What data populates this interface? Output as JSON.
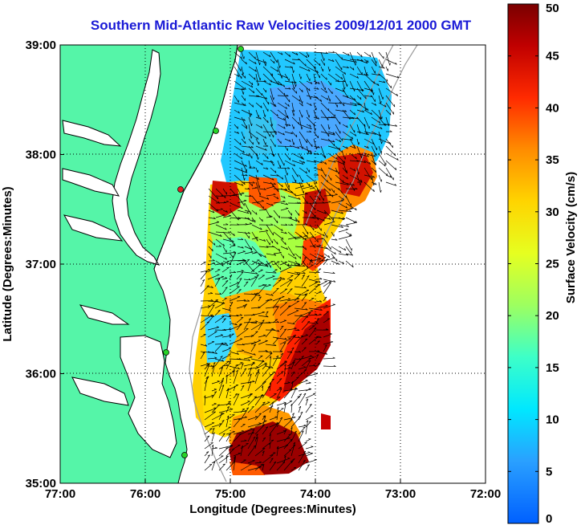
{
  "title": "Southern Mid-Atlantic Raw Velocities 2009/12/01 2000 GMT",
  "xaxis": {
    "label": "Longitude (Degrees:Minutes)",
    "ticks": [
      "77:00",
      "76:00",
      "75:00",
      "74:00",
      "73:00",
      "72:00"
    ]
  },
  "yaxis": {
    "label": "Latitude (Degrees:Minutes)",
    "ticks": [
      "39:00",
      "38:00",
      "37:00",
      "36:00",
      "35:00"
    ]
  },
  "colorbar": {
    "label": "Surface Velocity (cm/s)",
    "range": [
      0,
      50
    ],
    "ticks": [
      "50",
      "45",
      "40",
      "35",
      "30",
      "25",
      "20",
      "15",
      "10",
      "5",
      "0"
    ]
  },
  "colors": {
    "land": "#55f5a8",
    "title": "#1a1ad6",
    "station_green": "#27d427",
    "station_red": "#e02020"
  },
  "map_extent": {
    "lon": [
      -77,
      -72
    ],
    "lat": [
      35,
      39
    ]
  }
}
